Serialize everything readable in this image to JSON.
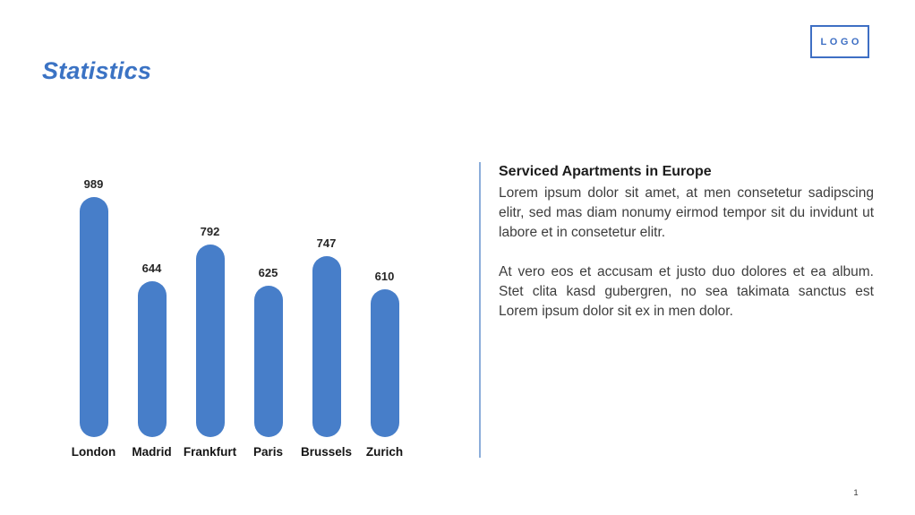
{
  "slide": {
    "title": "Statistics",
    "logo_text": "LOGO",
    "page_number": "1"
  },
  "chart_data": {
    "type": "bar",
    "categories": [
      "London",
      "Madrid",
      "Frankfurt",
      "Paris",
      "Brussels",
      "Zurich"
    ],
    "values": [
      989,
      644,
      792,
      625,
      747,
      610
    ],
    "title": "",
    "xlabel": "",
    "ylabel": "",
    "ylim": [
      0,
      1100
    ],
    "bar_color": "#477ec9",
    "data_labels": true,
    "grid": false,
    "legend": "none",
    "bar_shape": "rounded-pill"
  },
  "text_panel": {
    "heading": "Serviced Apartments in Europe",
    "paragraphs": [
      "Lorem ipsum dolor sit amet, at men consetetur sadipscing elitr, sed mas diam nonumy eirmod tempor sit du invidunt ut labore et in consetetur elitr.",
      "At vero eos et accusam et justo duo dolores et ea album. Stet clita kasd gubergren, no sea takimata sanctus est Lorem ipsum dolor sit ex in men dolor."
    ]
  },
  "colors": {
    "accent_blue": "#3b73c4",
    "logo_blue": "#3e6fc4",
    "bar_blue": "#477ec9",
    "divider_blue": "#8caeda",
    "heading_text": "#1c1c1c",
    "body_text": "#3d3d3d"
  }
}
